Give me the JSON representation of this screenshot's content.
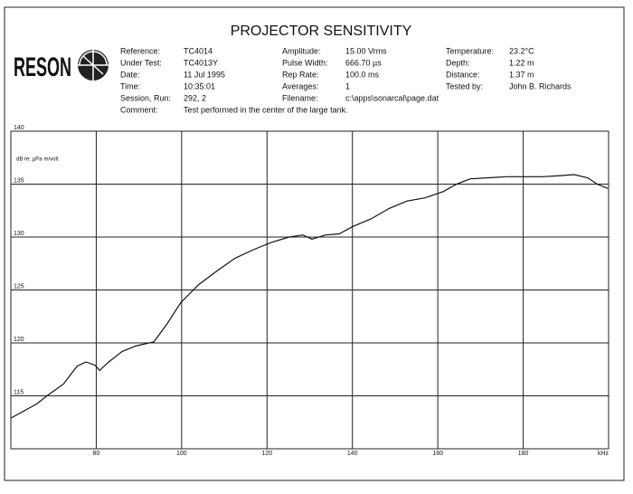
{
  "header": {
    "logo": "RESON",
    "columns": [
      [
        {
          "label": "Reference:",
          "value": "TC4014"
        },
        {
          "label": "Under Test:",
          "value": "TC4013Y"
        },
        {
          "label": "Date:",
          "value": "11 Jul 1995"
        },
        {
          "label": "Time:",
          "value": "10:35:01"
        },
        {
          "label": "Session, Run:",
          "value": "292, 2"
        }
      ],
      [
        {
          "label": "Amplitude:",
          "value": "15.00  Vrms"
        },
        {
          "label": "Pulse Width:",
          "value": "666.70 µs"
        },
        {
          "label": "Rep Rate:",
          "value": "100.0  ms"
        },
        {
          "label": "Averages:",
          "value": "1"
        },
        {
          "label": "Filename:",
          "value": "c:\\apps\\sonarcal\\page.dat"
        }
      ],
      [
        {
          "label": "Temperature:",
          "value": "23.2°C"
        },
        {
          "label": "Depth:",
          "value": "1.22  m"
        },
        {
          "label": "Distance:",
          "value": "1.37  m"
        },
        {
          "label": "Tested by:",
          "value": "John B. Richards"
        }
      ]
    ],
    "comment": {
      "label": "Comment:",
      "value": "Test performed in the center of the large tank."
    }
  },
  "chart_data": {
    "type": "line",
    "title": "PROJECTOR SENSITIVITY",
    "y_label": "dB re: µPa·m/volt",
    "x": [
      60,
      65.9,
      69.1,
      72.3,
      75.5,
      77.6,
      79.7,
      80.8,
      82.9,
      86.1,
      89.2,
      93.5,
      96.6,
      99.8,
      104,
      108.3,
      112.5,
      116.8,
      121,
      125.2,
      128.4,
      130.5,
      133.7,
      136.9,
      140.1,
      144.3,
      148.6,
      152.8,
      157,
      161.3,
      164.4,
      167.6,
      171.8,
      176.1,
      180.3,
      184.5,
      188.8,
      191.9,
      195.1,
      197.3,
      199.8
    ],
    "values": [
      112.9,
      114.2,
      115.2,
      116.1,
      117.8,
      118.2,
      117.9,
      117.4,
      118.2,
      119.2,
      119.7,
      120.1,
      121.8,
      123.8,
      125.5,
      126.8,
      128.0,
      128.8,
      129.5,
      130.0,
      130.2,
      129.8,
      130.2,
      130.3,
      131.0,
      131.7,
      132.7,
      133.4,
      133.7,
      134.3,
      135.0,
      135.5,
      135.6,
      135.7,
      135.7,
      135.7,
      135.8,
      135.9,
      135.6,
      135.0,
      134.6
    ],
    "color": "#111111",
    "xlim": [
      60,
      200
    ],
    "xticks": [
      80,
      100,
      120,
      140,
      160,
      180,
      {
        "value": 200,
        "label": "kHz"
      }
    ],
    "ylim": [
      110,
      140
    ],
    "yticks": [
      115,
      120,
      125,
      130,
      135,
      140
    ],
    "grid": true
  }
}
